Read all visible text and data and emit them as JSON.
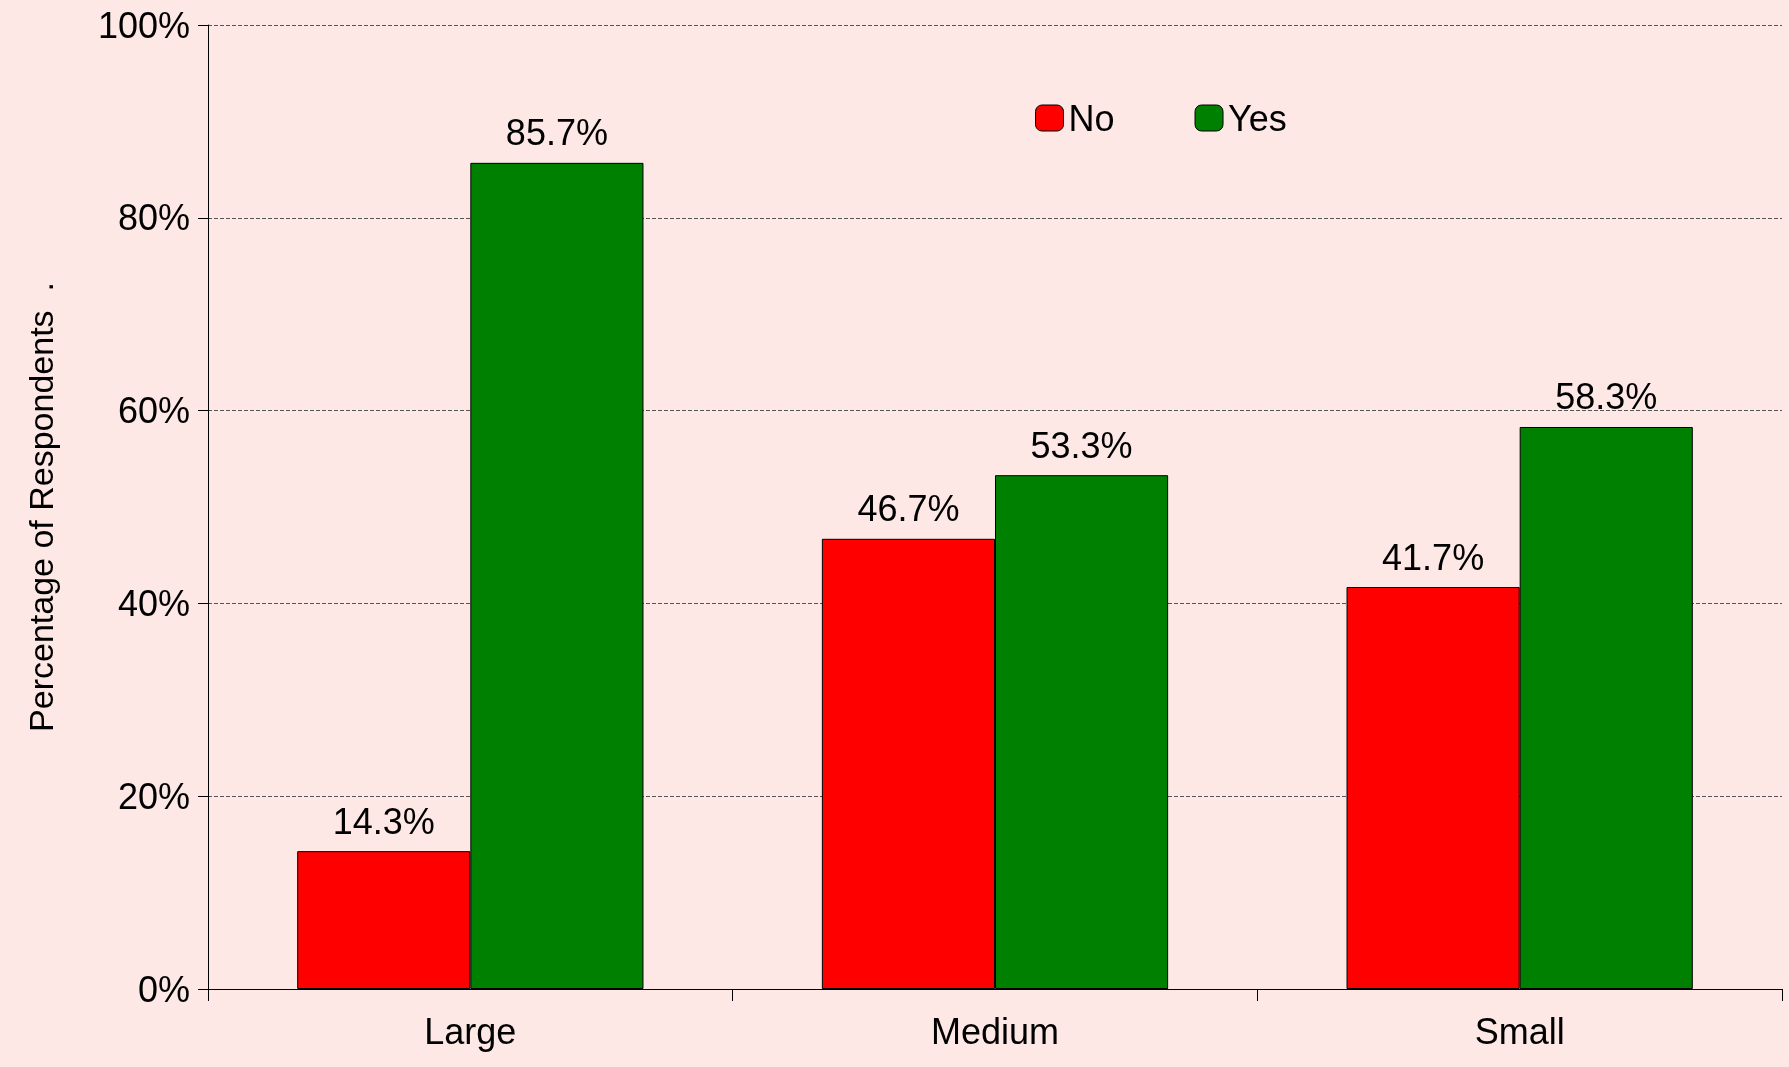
{
  "chart_data": {
    "type": "bar",
    "ylabel": "Percentage of Respondents  .",
    "categories": [
      "Large",
      "Medium",
      "Small"
    ],
    "series": [
      {
        "name": "No",
        "color": "#ff0000",
        "values": [
          14.3,
          46.7,
          41.7
        ],
        "value_labels": [
          "14.3%",
          "46.7%",
          "41.7%"
        ]
      },
      {
        "name": "Yes",
        "color": "#008000",
        "values": [
          85.7,
          53.3,
          58.3
        ],
        "value_labels": [
          "85.7%",
          "53.3%",
          "58.3%"
        ]
      }
    ],
    "ylim": [
      0,
      100
    ],
    "yticks": [
      {
        "value": 0,
        "label": "0%"
      },
      {
        "value": 20,
        "label": "20%"
      },
      {
        "value": 40,
        "label": "40%"
      },
      {
        "value": 60,
        "label": "60%"
      },
      {
        "value": 80,
        "label": "80%"
      },
      {
        "value": 100,
        "label": "100%"
      }
    ],
    "grid": "y",
    "legend": "top"
  }
}
